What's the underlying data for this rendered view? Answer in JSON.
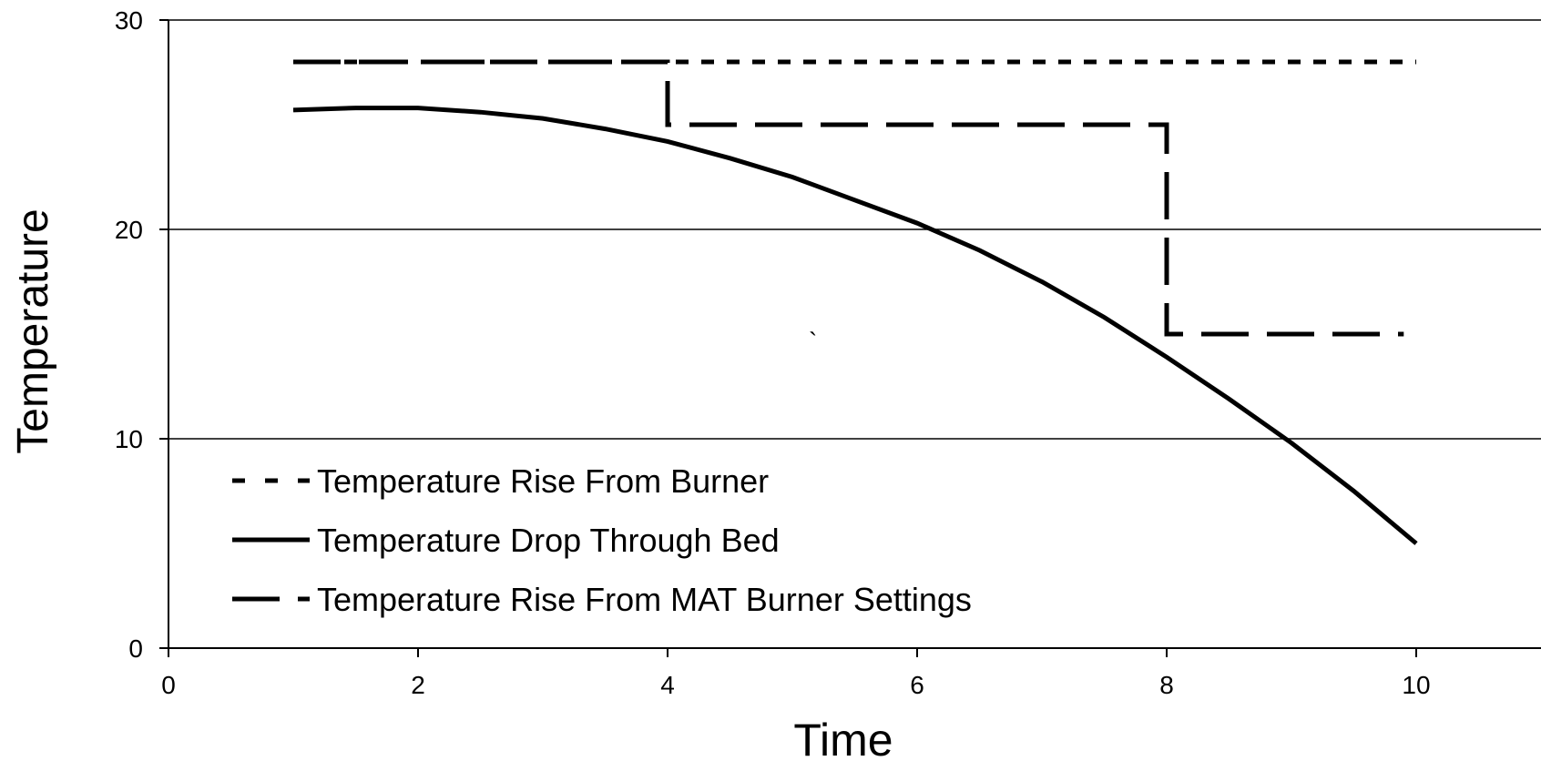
{
  "chart_data": {
    "type": "line",
    "title": "",
    "xlabel": "Time",
    "ylabel": "Temperature",
    "xlim": [
      0,
      11
    ],
    "ylim": [
      0,
      30
    ],
    "xticks": [
      0,
      2,
      4,
      6,
      8,
      10
    ],
    "yticks": [
      0,
      10,
      20,
      30
    ],
    "grid": "horizontal",
    "legend_position": "bottom-left",
    "series": [
      {
        "name": "Temperature Rise From Burner",
        "style": "dotted",
        "color": "#000000",
        "x": [
          1,
          10
        ],
        "y": [
          28,
          28
        ]
      },
      {
        "name": "Temperature Drop Through Bed",
        "style": "solid",
        "color": "#000000",
        "x": [
          1,
          1.5,
          2,
          2.5,
          3,
          3.5,
          4,
          4.5,
          5,
          5.5,
          6,
          6.5,
          7,
          7.5,
          8,
          8.5,
          9,
          9.5,
          10
        ],
        "y": [
          25.7,
          25.8,
          25.8,
          25.6,
          25.3,
          24.8,
          24.2,
          23.4,
          22.5,
          21.4,
          20.3,
          19.0,
          17.5,
          15.8,
          13.9,
          11.9,
          9.8,
          7.5,
          5.0
        ]
      },
      {
        "name": "Temperature Rise From MAT Burner Settings",
        "style": "dashed",
        "color": "#000000",
        "x": [
          1,
          4,
          4,
          8,
          8,
          9.9
        ],
        "y": [
          28,
          28,
          25,
          25,
          15,
          15
        ]
      }
    ],
    "annotations": [
      "`"
    ]
  }
}
